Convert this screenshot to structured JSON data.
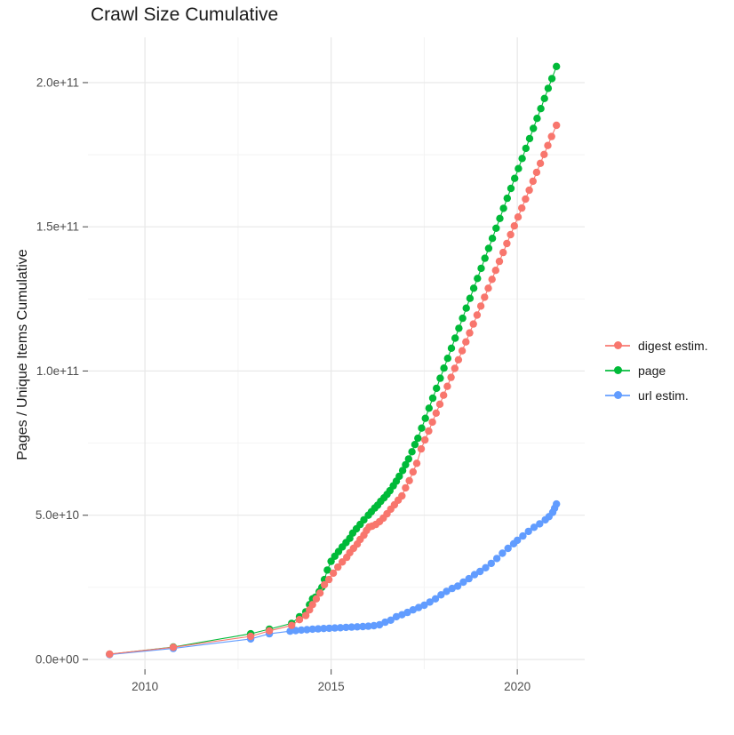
{
  "title": "Crawl Size Cumulative",
  "legend": {
    "items": [
      {
        "label": "digest estim.",
        "color": "#F8766D"
      },
      {
        "label": "page",
        "color": "#00BA38"
      },
      {
        "label": "url estim.",
        "color": "#619CFF"
      }
    ]
  },
  "colors": {
    "grid_major": "#e7e7e7",
    "grid_minor": "#f2f2f2",
    "tick_text": "#4d4d4d",
    "axis_tick": "#555555",
    "title_text": "#1a1a1a"
  },
  "chart_data": {
    "type": "scatter",
    "title": "Crawl Size Cumulative",
    "xlabel": "",
    "ylabel": "Pages / Unique Items Cumulative",
    "grid": true,
    "legend_position": "right",
    "xlim": [
      2008.47,
      2021.81
    ],
    "ylim": [
      -3400000000.0,
      215700000000.0
    ],
    "x_ticks": {
      "values": [
        2010,
        2015,
        2020
      ],
      "labels": [
        "2010",
        "2015",
        "2020"
      ]
    },
    "x_minor_ticks": [
      2012.5,
      2017.5
    ],
    "y_ticks": {
      "values": [
        0,
        50000000000.0,
        100000000000.0,
        150000000000.0,
        200000000000.0
      ],
      "labels": [
        "0.0e+00",
        "5.0e+10",
        "1.0e+11",
        "1.5e+11",
        "2.0e+11"
      ]
    },
    "y_minor_ticks": [
      25000000000.0,
      75000000000.0,
      125000000000.0,
      175000000000.0
    ],
    "draw_order": [
      "page",
      "url estim.",
      "digest estim."
    ],
    "series": [
      {
        "name": "digest estim.",
        "color": "#F8766D",
        "points": [
          [
            2009.05,
            1850000000.0
          ],
          [
            2010.76,
            4200000000.0
          ],
          [
            2012.84,
            8000000000.0
          ],
          [
            2013.34,
            9900000000.0
          ],
          [
            2013.94,
            11800000000.0
          ],
          [
            2014.15,
            13800000000.0
          ],
          [
            2014.32,
            15200000000.0
          ],
          [
            2014.42,
            17200000000.0
          ],
          [
            2014.5,
            19000000000.0
          ],
          [
            2014.6,
            21000000000.0
          ],
          [
            2014.7,
            23000000000.0
          ],
          [
            2014.82,
            25900000000.0
          ],
          [
            2014.94,
            27700000000.0
          ],
          [
            2015.06,
            29900000000.0
          ],
          [
            2015.18,
            32000000000.0
          ],
          [
            2015.3,
            33800000000.0
          ],
          [
            2015.42,
            35400000000.0
          ],
          [
            2015.5,
            37000000000.0
          ],
          [
            2015.6,
            38500000000.0
          ],
          [
            2015.7,
            40000000000.0
          ],
          [
            2015.78,
            41600000000.0
          ],
          [
            2015.88,
            43100000000.0
          ],
          [
            2015.95,
            44700000000.0
          ],
          [
            2016.02,
            45900000000.0
          ],
          [
            2016.1,
            46200000000.0
          ],
          [
            2016.2,
            46800000000.0
          ],
          [
            2016.3,
            47800000000.0
          ],
          [
            2016.4,
            49000000000.0
          ],
          [
            2016.5,
            50500000000.0
          ],
          [
            2016.6,
            52100000000.0
          ],
          [
            2016.7,
            53600000000.0
          ],
          [
            2016.8,
            55200000000.0
          ],
          [
            2016.9,
            56700000000.0
          ],
          [
            2017.0,
            59500000000.0
          ],
          [
            2017.1,
            62000000000.0
          ],
          [
            2017.2,
            65000000000.0
          ],
          [
            2017.3,
            68000000000.0
          ],
          [
            2017.42,
            73000000000.0
          ],
          [
            2017.52,
            76100000000.0
          ],
          [
            2017.62,
            79200000000.0
          ],
          [
            2017.72,
            82300000000.0
          ],
          [
            2017.82,
            85400000000.0
          ],
          [
            2017.92,
            88500000000.0
          ],
          [
            2018.02,
            91600000000.0
          ],
          [
            2018.12,
            94700000000.0
          ],
          [
            2018.22,
            97800000000.0
          ],
          [
            2018.32,
            100900000000.0
          ],
          [
            2018.42,
            103900000000.0
          ],
          [
            2018.52,
            107000000000.0
          ],
          [
            2018.62,
            110100000000.0
          ],
          [
            2018.72,
            113200000000.0
          ],
          [
            2018.82,
            116300000000.0
          ],
          [
            2018.92,
            119400000000.0
          ],
          [
            2019.02,
            122500000000.0
          ],
          [
            2019.12,
            125600000000.0
          ],
          [
            2019.22,
            128700000000.0
          ],
          [
            2019.32,
            131800000000.0
          ],
          [
            2019.42,
            134900000000.0
          ],
          [
            2019.52,
            138000000000.0
          ],
          [
            2019.62,
            141100000000.0
          ],
          [
            2019.72,
            144200000000.0
          ],
          [
            2019.82,
            147300000000.0
          ],
          [
            2019.92,
            150300000000.0
          ],
          [
            2020.02,
            153400000000.0
          ],
          [
            2020.12,
            156500000000.0
          ],
          [
            2020.22,
            159600000000.0
          ],
          [
            2020.32,
            162700000000.0
          ],
          [
            2020.42,
            165800000000.0
          ],
          [
            2020.52,
            168900000000.0
          ],
          [
            2020.62,
            172000000000.0
          ],
          [
            2020.72,
            175100000000.0
          ],
          [
            2020.82,
            178200000000.0
          ],
          [
            2020.92,
            181300000000.0
          ],
          [
            2021.05,
            185200000000.0
          ]
        ]
      },
      {
        "name": "page",
        "color": "#00BA38",
        "points": [
          [
            2009.05,
            1800000000.0
          ],
          [
            2010.76,
            4300000000.0
          ],
          [
            2012.84,
            8900000000.0
          ],
          [
            2013.34,
            10500000000.0
          ],
          [
            2013.94,
            12500000000.0
          ],
          [
            2014.15,
            14800000000.0
          ],
          [
            2014.32,
            16500000000.0
          ],
          [
            2014.42,
            19000000000.0
          ],
          [
            2014.5,
            21000000000.0
          ],
          [
            2014.58,
            21600000000.0
          ],
          [
            2014.68,
            23500000000.0
          ],
          [
            2014.75,
            25000000000.0
          ],
          [
            2014.82,
            27700000000.0
          ],
          [
            2014.9,
            31000000000.0
          ],
          [
            2015.0,
            34000000000.0
          ],
          [
            2015.1,
            35800000000.0
          ],
          [
            2015.2,
            37400000000.0
          ],
          [
            2015.3,
            39000000000.0
          ],
          [
            2015.4,
            40500000000.0
          ],
          [
            2015.5,
            42000000000.0
          ],
          [
            2015.58,
            43800000000.0
          ],
          [
            2015.68,
            45300000000.0
          ],
          [
            2015.78,
            46800000000.0
          ],
          [
            2015.88,
            48400000000.0
          ],
          [
            2016.0,
            50000000000.0
          ],
          [
            2016.08,
            51200000000.0
          ],
          [
            2016.17,
            52500000000.0
          ],
          [
            2016.25,
            53500000000.0
          ],
          [
            2016.33,
            54800000000.0
          ],
          [
            2016.42,
            56000000000.0
          ],
          [
            2016.5,
            57200000000.0
          ],
          [
            2016.58,
            58500000000.0
          ],
          [
            2016.67,
            60200000000.0
          ],
          [
            2016.75,
            61800000000.0
          ],
          [
            2016.83,
            63500000000.0
          ],
          [
            2016.92,
            65500000000.0
          ],
          [
            2017.0,
            67500000000.0
          ],
          [
            2017.08,
            69500000000.0
          ],
          [
            2017.17,
            72000000000.0
          ],
          [
            2017.25,
            74500000000.0
          ],
          [
            2017.33,
            76700000000.0
          ],
          [
            2017.43,
            80200000000.0
          ],
          [
            2017.53,
            83600000000.0
          ],
          [
            2017.63,
            87100000000.0
          ],
          [
            2017.73,
            90600000000.0
          ],
          [
            2017.83,
            94000000000.0
          ],
          [
            2017.93,
            97500000000.0
          ],
          [
            2018.03,
            101000000000.0
          ],
          [
            2018.13,
            104400000000.0
          ],
          [
            2018.23,
            107900000000.0
          ],
          [
            2018.33,
            111400000000.0
          ],
          [
            2018.43,
            114800000000.0
          ],
          [
            2018.53,
            118300000000.0
          ],
          [
            2018.63,
            121800000000.0
          ],
          [
            2018.73,
            125200000000.0
          ],
          [
            2018.83,
            128700000000.0
          ],
          [
            2018.93,
            132100000000.0
          ],
          [
            2019.03,
            135600000000.0
          ],
          [
            2019.13,
            139100000000.0
          ],
          [
            2019.23,
            142500000000.0
          ],
          [
            2019.33,
            146000000000.0
          ],
          [
            2019.43,
            149500000000.0
          ],
          [
            2019.53,
            152900000000.0
          ],
          [
            2019.63,
            156400000000.0
          ],
          [
            2019.73,
            159900000000.0
          ],
          [
            2019.83,
            163300000000.0
          ],
          [
            2019.93,
            166800000000.0
          ],
          [
            2020.03,
            170200000000.0
          ],
          [
            2020.13,
            173700000000.0
          ],
          [
            2020.23,
            177200000000.0
          ],
          [
            2020.33,
            180600000000.0
          ],
          [
            2020.43,
            184100000000.0
          ],
          [
            2020.53,
            187600000000.0
          ],
          [
            2020.63,
            191000000000.0
          ],
          [
            2020.73,
            194500000000.0
          ],
          [
            2020.83,
            198000000000.0
          ],
          [
            2020.93,
            201400000000.0
          ],
          [
            2021.05,
            205600000000.0
          ]
        ]
      },
      {
        "name": "url estim.",
        "color": "#619CFF",
        "points": [
          [
            2009.05,
            1700000000.0
          ],
          [
            2010.76,
            3800000000.0
          ],
          [
            2012.84,
            7100000000.0
          ],
          [
            2013.34,
            8900000000.0
          ],
          [
            2013.9,
            9800000000.0
          ],
          [
            2014.05,
            10000000000.0
          ],
          [
            2014.2,
            10200000000.0
          ],
          [
            2014.35,
            10300000000.0
          ],
          [
            2014.5,
            10500000000.0
          ],
          [
            2014.65,
            10600000000.0
          ],
          [
            2014.8,
            10700000000.0
          ],
          [
            2014.95,
            10800000000.0
          ],
          [
            2015.1,
            10900000000.0
          ],
          [
            2015.25,
            11000000000.0
          ],
          [
            2015.4,
            11100000000.0
          ],
          [
            2015.55,
            11200000000.0
          ],
          [
            2015.7,
            11300000000.0
          ],
          [
            2015.85,
            11400000000.0
          ],
          [
            2016.0,
            11500000000.0
          ],
          [
            2016.15,
            11700000000.0
          ],
          [
            2016.3,
            12000000000.0
          ],
          [
            2016.45,
            12900000000.0
          ],
          [
            2016.6,
            13600000000.0
          ],
          [
            2016.75,
            14800000000.0
          ],
          [
            2016.9,
            15500000000.0
          ],
          [
            2017.05,
            16300000000.0
          ],
          [
            2017.2,
            17200000000.0
          ],
          [
            2017.35,
            18000000000.0
          ],
          [
            2017.5,
            18800000000.0
          ],
          [
            2017.65,
            19900000000.0
          ],
          [
            2017.8,
            21000000000.0
          ],
          [
            2017.95,
            22400000000.0
          ],
          [
            2018.1,
            23600000000.0
          ],
          [
            2018.25,
            24600000000.0
          ],
          [
            2018.4,
            25400000000.0
          ],
          [
            2018.55,
            26800000000.0
          ],
          [
            2018.7,
            28000000000.0
          ],
          [
            2018.85,
            29400000000.0
          ],
          [
            2019.0,
            30500000000.0
          ],
          [
            2019.15,
            31800000000.0
          ],
          [
            2019.3,
            33300000000.0
          ],
          [
            2019.45,
            35000000000.0
          ],
          [
            2019.6,
            36800000000.0
          ],
          [
            2019.75,
            38500000000.0
          ],
          [
            2019.9,
            40100000000.0
          ],
          [
            2020.0,
            41300000000.0
          ],
          [
            2020.15,
            42800000000.0
          ],
          [
            2020.3,
            44400000000.0
          ],
          [
            2020.45,
            45800000000.0
          ],
          [
            2020.6,
            47000000000.0
          ],
          [
            2020.75,
            48400000000.0
          ],
          [
            2020.85,
            49500000000.0
          ],
          [
            2020.95,
            51000000000.0
          ],
          [
            2021.0,
            52400000000.0
          ],
          [
            2021.05,
            53900000000.0
          ]
        ]
      }
    ]
  }
}
